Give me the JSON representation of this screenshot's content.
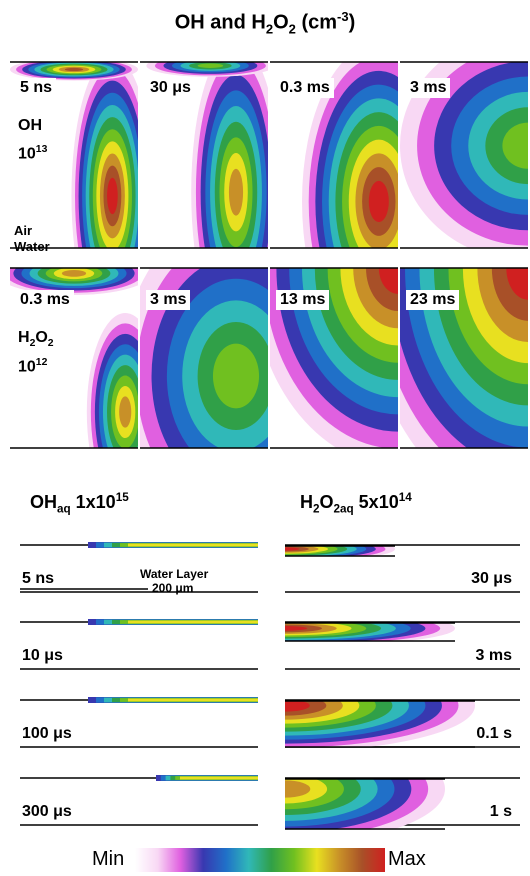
{
  "title": [
    {
      "text": "OH and H"
    },
    {
      "text": "2",
      "script": "sub"
    },
    {
      "text": "O"
    },
    {
      "text": "2",
      "script": "sub"
    },
    {
      "text": " (cm"
    },
    {
      "text": "-3",
      "script": "sup"
    },
    {
      "text": ")"
    }
  ],
  "oh_row": {
    "times": [
      "5 ns",
      "30 μs",
      "0.3 ms",
      "3 ms"
    ],
    "species": [
      {
        "text": "OH"
      }
    ],
    "scale": [
      {
        "text": "10"
      },
      {
        "text": "13",
        "script": "sup"
      }
    ],
    "air": "Air",
    "water": "Water"
  },
  "h2o2_row": {
    "times": [
      "0.3 ms",
      "3 ms",
      "13 ms",
      "23 ms"
    ],
    "species": [
      {
        "text": "H"
      },
      {
        "text": "2",
        "script": "sub"
      },
      {
        "text": "O"
      },
      {
        "text": "2",
        "script": "sub"
      }
    ],
    "scale": [
      {
        "text": "10"
      },
      {
        "text": "12",
        "script": "sup"
      }
    ]
  },
  "oh_aq": {
    "heading": [
      {
        "text": "OH"
      },
      {
        "text": "aq",
        "script": "sub"
      },
      {
        "text": "  1x10"
      },
      {
        "text": "15",
        "script": "sup"
      }
    ],
    "times": [
      "5 ns",
      "10 μs",
      "100 μs",
      "300 μs"
    ]
  },
  "h2o2_aq": {
    "heading": [
      {
        "text": "H"
      },
      {
        "text": "2",
        "script": "sub"
      },
      {
        "text": "O"
      },
      {
        "text": "2aq",
        "script": "sub"
      },
      {
        "text": "  5x10"
      },
      {
        "text": "14",
        "script": "sup"
      }
    ],
    "times": [
      "30 μs",
      "3 ms",
      "0.1 s",
      "1 s"
    ]
  },
  "scale_bar": {
    "label": "Water Layer",
    "length": "200 μm"
  },
  "colorbar": {
    "min": "Min",
    "max": "Max"
  }
}
